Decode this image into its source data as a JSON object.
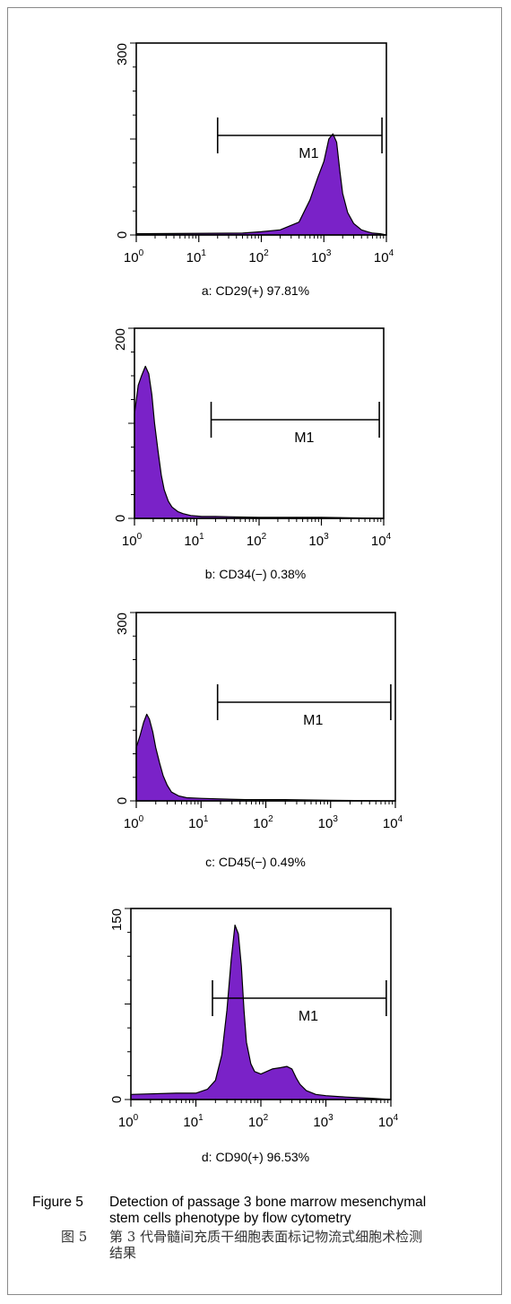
{
  "chart_data": [
    {
      "type": "histogram",
      "caption": "a: CD29(+) 97.81%",
      "y_ticks": [
        "0",
        "300"
      ],
      "ylim": [
        0,
        300
      ],
      "x_scale": "log",
      "x_ticks": [
        {
          "base": "10",
          "exp": "0"
        },
        {
          "base": "10",
          "exp": "1"
        },
        {
          "base": "10",
          "exp": "2"
        },
        {
          "base": "10",
          "exp": "3"
        },
        {
          "base": "10",
          "exp": "4"
        }
      ],
      "xlim": [
        1,
        10000
      ],
      "gate": {
        "label": "M1",
        "start": 20,
        "end": 8500
      },
      "histogram": {
        "x": [
          1,
          50,
          100,
          200,
          400,
          600,
          800,
          1000,
          1200,
          1400,
          1600,
          1800,
          2000,
          2400,
          3000,
          4000,
          5000,
          6000,
          8000,
          10000
        ],
        "y": [
          2,
          3,
          5,
          8,
          20,
          55,
          90,
          115,
          150,
          158,
          145,
          100,
          65,
          35,
          18,
          8,
          5,
          3,
          2,
          0
        ]
      }
    },
    {
      "type": "histogram",
      "caption": "b: CD34(−) 0.38%",
      "y_ticks": [
        "0",
        "200"
      ],
      "ylim": [
        0,
        200
      ],
      "x_scale": "log",
      "x_ticks": [
        {
          "base": "10",
          "exp": "0"
        },
        {
          "base": "10",
          "exp": "1"
        },
        {
          "base": "10",
          "exp": "2"
        },
        {
          "base": "10",
          "exp": "3"
        },
        {
          "base": "10",
          "exp": "4"
        }
      ],
      "xlim": [
        1,
        10000
      ],
      "gate": {
        "label": "M1",
        "start": 17,
        "end": 8500
      },
      "histogram": {
        "x": [
          1,
          1.15,
          1.3,
          1.5,
          1.7,
          1.9,
          2.1,
          2.4,
          2.7,
          3,
          3.5,
          4,
          5,
          6,
          8,
          12,
          20,
          100,
          1000,
          10000
        ],
        "y": [
          110,
          140,
          150,
          160,
          152,
          130,
          100,
          70,
          45,
          30,
          18,
          12,
          7,
          5,
          3,
          2,
          2,
          1,
          1,
          0
        ]
      }
    },
    {
      "type": "histogram",
      "caption": "c: CD45(−) 0.49%",
      "y_ticks": [
        "0",
        "300"
      ],
      "ylim": [
        0,
        300
      ],
      "x_scale": "log",
      "x_ticks": [
        {
          "base": "10",
          "exp": "0"
        },
        {
          "base": "10",
          "exp": "1"
        },
        {
          "base": "10",
          "exp": "2"
        },
        {
          "base": "10",
          "exp": "3"
        },
        {
          "base": "10",
          "exp": "4"
        }
      ],
      "xlim": [
        1,
        10000
      ],
      "gate": {
        "label": "M1",
        "start": 18,
        "end": 8500
      },
      "histogram": {
        "x": [
          1,
          1.15,
          1.3,
          1.45,
          1.6,
          1.8,
          2,
          2.3,
          2.6,
          3,
          3.5,
          4.5,
          6,
          10,
          20,
          50,
          200,
          1000,
          10000
        ],
        "y": [
          85,
          105,
          125,
          138,
          130,
          110,
          85,
          60,
          40,
          25,
          14,
          8,
          5,
          4,
          3,
          2,
          2,
          1,
          0
        ]
      }
    },
    {
      "type": "histogram",
      "caption": "d: CD90(+) 96.53%",
      "y_ticks": [
        "0",
        "150"
      ],
      "ylim": [
        0,
        150
      ],
      "x_scale": "log",
      "x_ticks": [
        {
          "base": "10",
          "exp": "0"
        },
        {
          "base": "10",
          "exp": "1"
        },
        {
          "base": "10",
          "exp": "2"
        },
        {
          "base": "10",
          "exp": "3"
        },
        {
          "base": "10",
          "exp": "4"
        }
      ],
      "xlim": [
        1,
        10000
      ],
      "gate": {
        "label": "M1",
        "start": 18,
        "end": 8500
      },
      "histogram": {
        "x": [
          1,
          5,
          10,
          15,
          20,
          25,
          30,
          35,
          40,
          45,
          50,
          55,
          60,
          70,
          80,
          100,
          150,
          200,
          250,
          300,
          350,
          400,
          500,
          700,
          1000,
          2000,
          5000,
          10000
        ],
        "y": [
          4,
          5,
          5,
          8,
          15,
          35,
          70,
          110,
          137,
          130,
          105,
          70,
          45,
          28,
          22,
          20,
          24,
          25,
          26,
          24,
          17,
          12,
          7,
          4,
          3,
          2,
          1,
          0
        ]
      }
    }
  ],
  "figure_caption": {
    "number_en": "Figure 5",
    "line1": "Detection of passage 3 bone marrow mesenchymal",
    "line2": "stem cells phenotype by flow cytometry",
    "number_cn": "图 5",
    "cn_line1": "第 3 代骨髓间充质干细胞表面标记物流式细胞术检测",
    "cn_line2": "结果"
  },
  "colors": {
    "fill": "#7a22c8",
    "outline": "#000000"
  }
}
